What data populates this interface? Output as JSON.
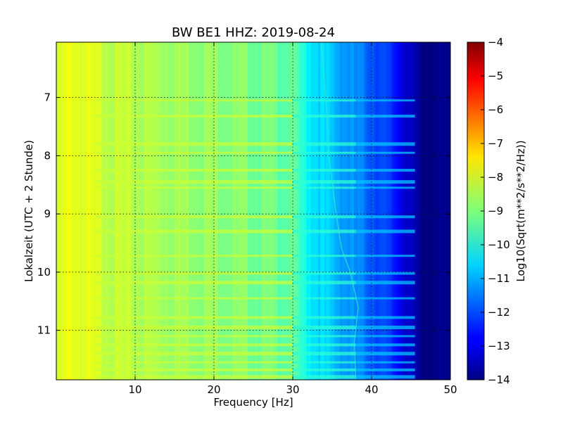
{
  "chart_data": {
    "type": "heatmap",
    "title": "BW BE1 HHZ: 2019-08-24",
    "xlabel": "Frequency [Hz]",
    "ylabel": "Lokalzeit (UTC + 2 Stunde)",
    "xlim": [
      0,
      50
    ],
    "ylim": [
      6.05,
      11.85
    ],
    "y_inverted": true,
    "x_ticks": [
      {
        "value": 10,
        "label": "10"
      },
      {
        "value": 20,
        "label": "20"
      },
      {
        "value": 30,
        "label": "30"
      },
      {
        "value": 40,
        "label": "40"
      },
      {
        "value": 50,
        "label": "50"
      }
    ],
    "y_ticks": [
      {
        "value": 7,
        "label": "7"
      },
      {
        "value": 8,
        "label": "8"
      },
      {
        "value": 9,
        "label": "9"
      },
      {
        "value": 10,
        "label": "10"
      },
      {
        "value": 11,
        "label": "11"
      }
    ],
    "grid": true,
    "colormap": "jet",
    "colorbar": {
      "label": "Log10(Sqrt(m**2/s**2/Hz))",
      "range": [
        -14,
        -4
      ],
      "ticks": [
        {
          "value": -4,
          "label": "−4"
        },
        {
          "value": -5,
          "label": "−5"
        },
        {
          "value": -6,
          "label": "−6"
        },
        {
          "value": -7,
          "label": "−7"
        },
        {
          "value": -8,
          "label": "−8"
        },
        {
          "value": -9,
          "label": "−9"
        },
        {
          "value": -10,
          "label": "−10"
        },
        {
          "value": -11,
          "label": "−11"
        },
        {
          "value": -12,
          "label": "−12"
        },
        {
          "value": -13,
          "label": "−13"
        },
        {
          "value": -14,
          "label": "−14"
        }
      ]
    },
    "frequency_profile": [
      {
        "f": 0,
        "level": -8.3
      },
      {
        "f": 2,
        "level": -7.9
      },
      {
        "f": 5,
        "level": -8.2
      },
      {
        "f": 10,
        "level": -8.5
      },
      {
        "f": 20,
        "level": -8.8
      },
      {
        "f": 30,
        "level": -9.3
      },
      {
        "f": 32,
        "level": -10.3
      },
      {
        "f": 35,
        "level": -10.9
      },
      {
        "f": 40,
        "level": -11.8
      },
      {
        "f": 43,
        "level": -12.5
      },
      {
        "f": 46,
        "level": -13.9
      },
      {
        "f": 50,
        "level": -14.0
      }
    ],
    "noise_bands_hours": [
      7.05,
      7.32,
      7.8,
      7.95,
      8.25,
      8.45,
      8.55,
      9.05,
      9.3,
      9.72,
      10.02,
      10.18,
      10.45,
      10.78,
      10.95,
      11.1,
      11.25,
      11.4,
      11.55,
      11.68,
      11.8
    ],
    "tremor_line": [
      {
        "t": 6.05,
        "f": 33.6
      },
      {
        "t": 7.0,
        "f": 34.2
      },
      {
        "t": 8.0,
        "f": 34.6
      },
      {
        "t": 9.0,
        "f": 35.5
      },
      {
        "t": 9.6,
        "f": 36.2
      },
      {
        "t": 10.0,
        "f": 37.3
      },
      {
        "t": 10.6,
        "f": 38.3
      },
      {
        "t": 11.2,
        "f": 37.8
      },
      {
        "t": 11.85,
        "f": 38.0
      }
    ]
  }
}
